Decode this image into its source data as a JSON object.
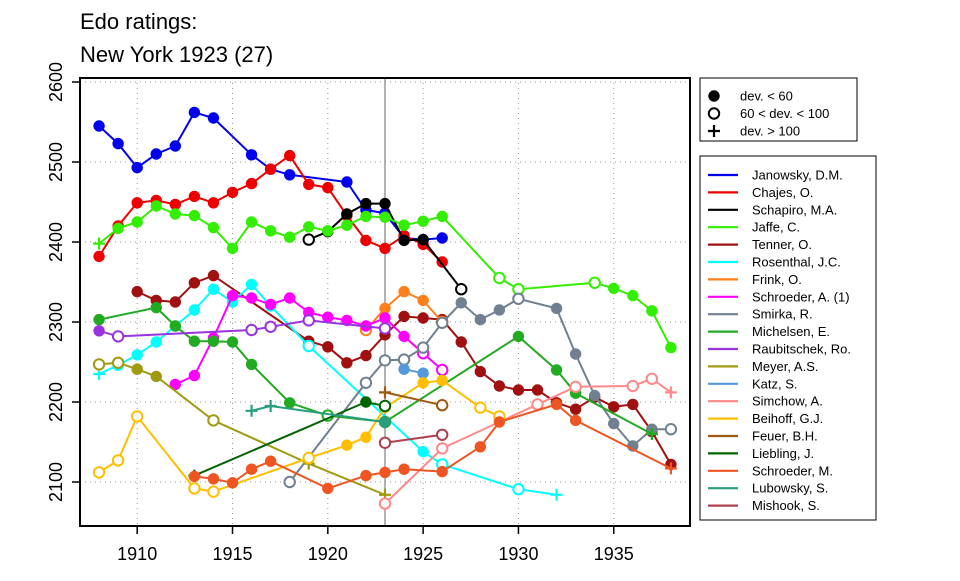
{
  "chart_data": {
    "type": "line",
    "title": "Edo ratings:",
    "subtitle": "New York 1923 (27)",
    "xlabel": "",
    "ylabel": "",
    "xlim": [
      1907,
      1939
    ],
    "ylim": [
      2045,
      2605
    ],
    "x_ticks": [
      1910,
      1915,
      1920,
      1925,
      1930,
      1935
    ],
    "y_ticks": [
      2100,
      2200,
      2300,
      2400,
      2500,
      2600
    ],
    "grid": true,
    "reference_line_x": 1923,
    "marker_legend": {
      "placement": "top-right",
      "entries": [
        {
          "marker": "filled-circle",
          "label": "dev. < 60"
        },
        {
          "marker": "open-circle",
          "label": "60 < dev. < 100"
        },
        {
          "marker": "plus",
          "label": "dev. > 100"
        }
      ]
    },
    "series_legend_placement": "right",
    "series": [
      {
        "name": "Janowsky, D.M.",
        "color": "#0000ee",
        "points": [
          [
            1908,
            2545,
            "f"
          ],
          [
            1909,
            2523,
            "f"
          ],
          [
            1910,
            2493,
            "f"
          ],
          [
            1911,
            2510,
            "f"
          ],
          [
            1912,
            2520,
            "f"
          ],
          [
            1913,
            2562,
            "f"
          ],
          [
            1914,
            2555,
            "f"
          ],
          [
            1916,
            2509,
            "f"
          ],
          [
            1917,
            2491,
            "f"
          ],
          [
            1918,
            2484,
            "f"
          ],
          [
            1921,
            2475,
            "f"
          ],
          [
            1922,
            2440,
            "f"
          ],
          [
            1923,
            2436,
            "f"
          ],
          [
            1924,
            2405,
            "f"
          ],
          [
            1925,
            2403,
            "f"
          ],
          [
            1926,
            2405,
            "f"
          ]
        ]
      },
      {
        "name": "Chajes, O.",
        "color": "#ee0000",
        "points": [
          [
            1908,
            2382,
            "f"
          ],
          [
            1909,
            2420,
            "f"
          ],
          [
            1910,
            2449,
            "f"
          ],
          [
            1911,
            2452,
            "f"
          ],
          [
            1912,
            2447,
            "f"
          ],
          [
            1913,
            2457,
            "f"
          ],
          [
            1914,
            2449,
            "f"
          ],
          [
            1915,
            2462,
            "f"
          ],
          [
            1916,
            2473,
            "f"
          ],
          [
            1917,
            2491,
            "f"
          ],
          [
            1918,
            2508,
            "f"
          ],
          [
            1919,
            2472,
            "f"
          ],
          [
            1920,
            2468,
            "f"
          ],
          [
            1921,
            2433,
            "f"
          ],
          [
            1922,
            2402,
            "f"
          ],
          [
            1923,
            2392,
            "f"
          ],
          [
            1924,
            2408,
            "f"
          ],
          [
            1925,
            2397,
            "f"
          ],
          [
            1926,
            2375,
            "f"
          ]
        ]
      },
      {
        "name": "Schapiro, M.A.",
        "color": "#000000",
        "points": [
          [
            1919,
            2403,
            "o"
          ],
          [
            1920,
            2413,
            "f"
          ],
          [
            1921,
            2435,
            "f"
          ],
          [
            1922,
            2448,
            "f"
          ],
          [
            1923,
            2448,
            "f"
          ],
          [
            1924,
            2402,
            "f"
          ],
          [
            1925,
            2403,
            "f"
          ],
          [
            1927,
            2341,
            "o"
          ]
        ]
      },
      {
        "name": "Jaffe, C.",
        "color": "#33ee00",
        "points": [
          [
            1908,
            2398,
            "n"
          ],
          [
            1909,
            2417,
            "f"
          ],
          [
            1910,
            2425,
            "f"
          ],
          [
            1911,
            2445,
            "f"
          ],
          [
            1912,
            2435,
            "f"
          ],
          [
            1913,
            2433,
            "f"
          ],
          [
            1914,
            2418,
            "f"
          ],
          [
            1915,
            2392,
            "f"
          ],
          [
            1916,
            2425,
            "f"
          ],
          [
            1917,
            2414,
            "f"
          ],
          [
            1918,
            2406,
            "f"
          ],
          [
            1919,
            2419,
            "f"
          ],
          [
            1920,
            2414,
            "f"
          ],
          [
            1921,
            2421,
            "f"
          ],
          [
            1922,
            2432,
            "f"
          ],
          [
            1923,
            2431,
            "f"
          ],
          [
            1924,
            2421,
            "f"
          ],
          [
            1925,
            2426,
            "f"
          ],
          [
            1926,
            2432,
            "f"
          ],
          [
            1929,
            2355,
            "o"
          ],
          [
            1930,
            2341,
            "o"
          ],
          [
            1934,
            2349,
            "o"
          ],
          [
            1935,
            2342,
            "f"
          ],
          [
            1936,
            2333,
            "f"
          ],
          [
            1937,
            2314,
            "f"
          ],
          [
            1938,
            2268,
            "f"
          ]
        ]
      },
      {
        "name": "Tenner, O.",
        "color": "#a01010",
        "points": [
          [
            1910,
            2338,
            "f"
          ],
          [
            1911,
            2327,
            "f"
          ],
          [
            1912,
            2325,
            "f"
          ],
          [
            1913,
            2349,
            "f"
          ],
          [
            1914,
            2358,
            "f"
          ],
          [
            1919,
            2276,
            "f"
          ],
          [
            1920,
            2269,
            "f"
          ],
          [
            1921,
            2249,
            "f"
          ],
          [
            1922,
            2258,
            "f"
          ],
          [
            1923,
            2284,
            "f"
          ],
          [
            1924,
            2307,
            "f"
          ],
          [
            1925,
            2305,
            "f"
          ],
          [
            1926,
            2303,
            "f"
          ],
          [
            1927,
            2275,
            "f"
          ],
          [
            1928,
            2238,
            "f"
          ],
          [
            1929,
            2220,
            "f"
          ],
          [
            1930,
            2215,
            "f"
          ],
          [
            1931,
            2215,
            "f"
          ],
          [
            1932,
            2199,
            "f"
          ],
          [
            1933,
            2191,
            "f"
          ],
          [
            1934,
            2206,
            "f"
          ],
          [
            1935,
            2194,
            "f"
          ],
          [
            1936,
            2197,
            "f"
          ],
          [
            1937,
            2163,
            "f"
          ],
          [
            1938,
            2122,
            "f"
          ]
        ]
      },
      {
        "name": "Rosenthal, J.C.",
        "color": "#00ffff",
        "points": [
          [
            1908,
            2235,
            "n"
          ],
          [
            1909,
            2246,
            "f"
          ],
          [
            1910,
            2259,
            "f"
          ],
          [
            1911,
            2275,
            "f"
          ],
          [
            1912,
            2295,
            "f"
          ],
          [
            1913,
            2315,
            "f"
          ],
          [
            1914,
            2341,
            "f"
          ],
          [
            1915,
            2325,
            "f"
          ],
          [
            1916,
            2347,
            "f"
          ],
          [
            1917,
            2320,
            "f"
          ],
          [
            1919,
            2270,
            "o"
          ],
          [
            1925,
            2138,
            "f"
          ],
          [
            1926,
            2122,
            "o"
          ],
          [
            1930,
            2091,
            "o"
          ],
          [
            1932,
            2084,
            "n"
          ]
        ]
      },
      {
        "name": "Frink, O.",
        "color": "#ff7f1a",
        "points": [
          [
            1922,
            2290,
            "o"
          ],
          [
            1923,
            2317,
            "f"
          ],
          [
            1924,
            2338,
            "f"
          ],
          [
            1925,
            2327,
            "f"
          ],
          [
            1926,
            2300,
            "o"
          ]
        ]
      },
      {
        "name": "Schroeder, A. (1)",
        "color": "#ff00ff",
        "points": [
          [
            1912,
            2222,
            "f"
          ],
          [
            1913,
            2233,
            "f"
          ],
          [
            1914,
            2280,
            "f"
          ],
          [
            1915,
            2333,
            "f"
          ],
          [
            1916,
            2330,
            "f"
          ],
          [
            1917,
            2322,
            "f"
          ],
          [
            1918,
            2330,
            "f"
          ],
          [
            1919,
            2312,
            "f"
          ],
          [
            1920,
            2306,
            "f"
          ],
          [
            1921,
            2302,
            "f"
          ],
          [
            1922,
            2295,
            "f"
          ],
          [
            1923,
            2305,
            "f"
          ],
          [
            1924,
            2282,
            "f"
          ],
          [
            1925,
            2261,
            "o"
          ],
          [
            1926,
            2240,
            "o"
          ]
        ]
      },
      {
        "name": "Smirka, R.",
        "color": "#708090",
        "points": [
          [
            1918,
            2100,
            "o"
          ],
          [
            1922,
            2224,
            "o"
          ],
          [
            1923,
            2252,
            "o"
          ],
          [
            1924,
            2253,
            "o"
          ],
          [
            1925,
            2268,
            "o"
          ],
          [
            1926,
            2299,
            "o"
          ],
          [
            1927,
            2324,
            "f"
          ],
          [
            1928,
            2303,
            "f"
          ],
          [
            1929,
            2315,
            "f"
          ],
          [
            1930,
            2329,
            "o"
          ],
          [
            1932,
            2317,
            "f"
          ],
          [
            1933,
            2260,
            "f"
          ],
          [
            1934,
            2208,
            "f"
          ],
          [
            1935,
            2173,
            "f"
          ],
          [
            1936,
            2145,
            "f"
          ],
          [
            1937,
            2166,
            "f"
          ],
          [
            1938,
            2166,
            "o"
          ]
        ]
      },
      {
        "name": "Michelsen, E.",
        "color": "#22aa22",
        "points": [
          [
            1908,
            2303,
            "f"
          ],
          [
            1911,
            2318,
            "f"
          ],
          [
            1912,
            2295,
            "f"
          ],
          [
            1913,
            2276,
            "f"
          ],
          [
            1914,
            2276,
            "f"
          ],
          [
            1915,
            2275,
            "f"
          ],
          [
            1916,
            2247,
            "f"
          ],
          [
            1918,
            2199,
            "f"
          ],
          [
            1920,
            2183,
            "o"
          ],
          [
            1923,
            2175,
            "o"
          ],
          [
            1930,
            2282,
            "f"
          ],
          [
            1932,
            2240,
            "f"
          ],
          [
            1933,
            2211,
            "f"
          ],
          [
            1937,
            2160,
            "n"
          ]
        ]
      },
      {
        "name": "Raubitschek, Ro.",
        "color": "#9933dd",
        "points": [
          [
            1908,
            2289,
            "f"
          ],
          [
            1909,
            2282,
            "o"
          ],
          [
            1916,
            2290,
            "o"
          ],
          [
            1917,
            2294,
            "o"
          ],
          [
            1919,
            2302,
            "o"
          ],
          [
            1923,
            2292,
            "o"
          ]
        ]
      },
      {
        "name": "Meyer, A.S.",
        "color": "#a09a10",
        "points": [
          [
            1908,
            2247,
            "o"
          ],
          [
            1909,
            2249,
            "o"
          ],
          [
            1910,
            2241,
            "f"
          ],
          [
            1911,
            2232,
            "f"
          ],
          [
            1914,
            2177,
            "o"
          ],
          [
            1919,
            2123,
            "n"
          ],
          [
            1923,
            2084,
            "n"
          ]
        ]
      },
      {
        "name": "Katz, S.",
        "color": "#5599dd",
        "points": [
          [
            1924,
            2241,
            "f"
          ],
          [
            1925,
            2236,
            "f"
          ]
        ]
      },
      {
        "name": "Simchow, A.",
        "color": "#ff8888",
        "points": [
          [
            1923,
            2073,
            "o"
          ],
          [
            1926,
            2142,
            "o"
          ],
          [
            1931,
            2197,
            "o"
          ],
          [
            1933,
            2219,
            "o"
          ],
          [
            1936,
            2220,
            "o"
          ],
          [
            1937,
            2229,
            "o"
          ],
          [
            1938,
            2212,
            "n"
          ]
        ]
      },
      {
        "name": "Beihoff, G.J.",
        "color": "#ffbf00",
        "points": [
          [
            1908,
            2112,
            "o"
          ],
          [
            1909,
            2127,
            "o"
          ],
          [
            1910,
            2182,
            "o"
          ],
          [
            1913,
            2092,
            "o"
          ],
          [
            1914,
            2088,
            "o"
          ],
          [
            1919,
            2130,
            "o"
          ],
          [
            1921,
            2146,
            "f"
          ],
          [
            1922,
            2156,
            "f"
          ],
          [
            1923,
            2193,
            "f"
          ],
          [
            1925,
            2224,
            "f"
          ],
          [
            1926,
            2227,
            "f"
          ],
          [
            1928,
            2193,
            "o"
          ],
          [
            1929,
            2182,
            "o"
          ]
        ]
      },
      {
        "name": "Feuer, B.H.",
        "color": "#a05a10",
        "points": [
          [
            1923,
            2212,
            "n"
          ],
          [
            1926,
            2196,
            "o"
          ]
        ]
      },
      {
        "name": "Liebling, J.",
        "color": "#006400",
        "points": [
          [
            1913,
            2108,
            "n"
          ],
          [
            1922,
            2200,
            "f"
          ],
          [
            1923,
            2195,
            "o"
          ]
        ]
      },
      {
        "name": "Schroeder, M.",
        "color": "#ee5522",
        "points": [
          [
            1913,
            2107,
            "f"
          ],
          [
            1914,
            2104,
            "f"
          ],
          [
            1915,
            2099,
            "f"
          ],
          [
            1916,
            2116,
            "f"
          ],
          [
            1917,
            2126,
            "f"
          ],
          [
            1920,
            2092,
            "f"
          ],
          [
            1922,
            2108,
            "f"
          ],
          [
            1923,
            2112,
            "f"
          ],
          [
            1924,
            2116,
            "f"
          ],
          [
            1926,
            2113,
            "f"
          ],
          [
            1928,
            2144,
            "f"
          ],
          [
            1929,
            2175,
            "f"
          ],
          [
            1932,
            2197,
            "f"
          ],
          [
            1933,
            2177,
            "f"
          ],
          [
            1938,
            2117,
            "n"
          ]
        ]
      },
      {
        "name": "Lubowsky, S.",
        "color": "#2a9d7f",
        "points": [
          [
            1916,
            2189,
            "n"
          ],
          [
            1917,
            2195,
            "n"
          ],
          [
            1923,
            2175,
            "f"
          ]
        ]
      },
      {
        "name": "Mishook, S.",
        "color": "#b04050",
        "points": [
          [
            1923,
            2149,
            "o"
          ],
          [
            1926,
            2159,
            "o"
          ]
        ]
      }
    ]
  }
}
